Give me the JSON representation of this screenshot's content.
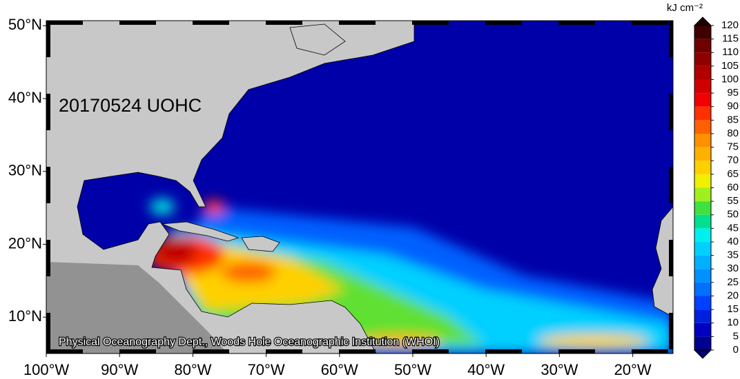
{
  "map": {
    "title": "20170524 UOHC",
    "credit": "Physical Oceanography Dept., Woods Hole Oceanographic Institution (WHOI)",
    "xlim": [
      -100,
      -14.5
    ],
    "ylim": [
      5,
      50.7
    ],
    "lon_ticks": [
      {
        "value": -100,
        "label": "100°W"
      },
      {
        "value": -90,
        "label": "90°W"
      },
      {
        "value": -80,
        "label": "80°W"
      },
      {
        "value": -70,
        "label": "70°W"
      },
      {
        "value": -60,
        "label": "60°W"
      },
      {
        "value": -50,
        "label": "50°W"
      },
      {
        "value": -40,
        "label": "40°W"
      },
      {
        "value": -30,
        "label": "30°W"
      },
      {
        "value": -20,
        "label": "20°W"
      }
    ],
    "lat_ticks": [
      {
        "value": 10,
        "label": "10°N"
      },
      {
        "value": 20,
        "label": "20°N"
      },
      {
        "value": 30,
        "label": "30°N"
      },
      {
        "value": 40,
        "label": "40°N"
      },
      {
        "value": 50,
        "label": "50°N"
      }
    ],
    "colorbar": {
      "unit": "kJ cm⁻²",
      "ticks": [
        0,
        5,
        10,
        15,
        20,
        25,
        30,
        35,
        40,
        45,
        50,
        55,
        60,
        65,
        70,
        75,
        80,
        85,
        90,
        95,
        100,
        105,
        110,
        115,
        120
      ],
      "colors": [
        "#000090",
        "#0000c0",
        "#0020e0",
        "#0040ff",
        "#0070ff",
        "#0090ff",
        "#00b0ff",
        "#00d0ff",
        "#00f0f0",
        "#00e090",
        "#40e040",
        "#a0f020",
        "#f0f000",
        "#ffd000",
        "#ffb000",
        "#ff9000",
        "#ff6000",
        "#ff3000",
        "#f00000",
        "#d00000",
        "#b00000",
        "#900000",
        "#700000",
        "#400000"
      ],
      "under_color": "#00006a",
      "over_color": "#200000"
    }
  }
}
